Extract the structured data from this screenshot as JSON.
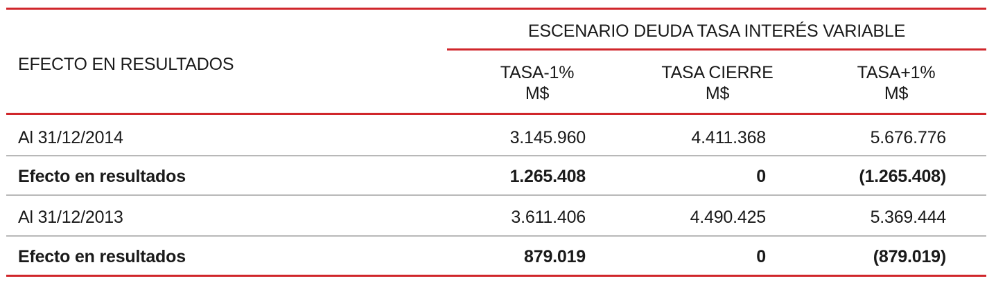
{
  "table": {
    "group_header": "ESCENARIO DEUDA TASA INTERÉS VARIABLE",
    "row_header": "EFECTO EN RESULTADOS",
    "columns": [
      {
        "name": "TASA-1%",
        "unit": "M$"
      },
      {
        "name": "TASA CIERRE",
        "unit": "M$"
      },
      {
        "name": "TASA+1%",
        "unit": "M$"
      }
    ],
    "rows": [
      {
        "label": "Al 31/12/2014",
        "bold": false,
        "values": [
          "3.145.960",
          "4.411.368",
          "5.676.776"
        ]
      },
      {
        "label": "Efecto en resultados",
        "bold": true,
        "values": [
          "1.265.408",
          "0",
          "(1.265.408)"
        ]
      },
      {
        "label": "Al 31/12/2013",
        "bold": false,
        "values": [
          "3.611.406",
          "4.490.425",
          "5.369.444"
        ]
      },
      {
        "label": "Efecto en resultados",
        "bold": true,
        "values": [
          "879.019",
          "0",
          "(879.019)"
        ]
      }
    ]
  },
  "colors": {
    "accent_rule": "#d0262b",
    "row_divider": "#b8b8b8",
    "text": "#1a1a1a"
  }
}
